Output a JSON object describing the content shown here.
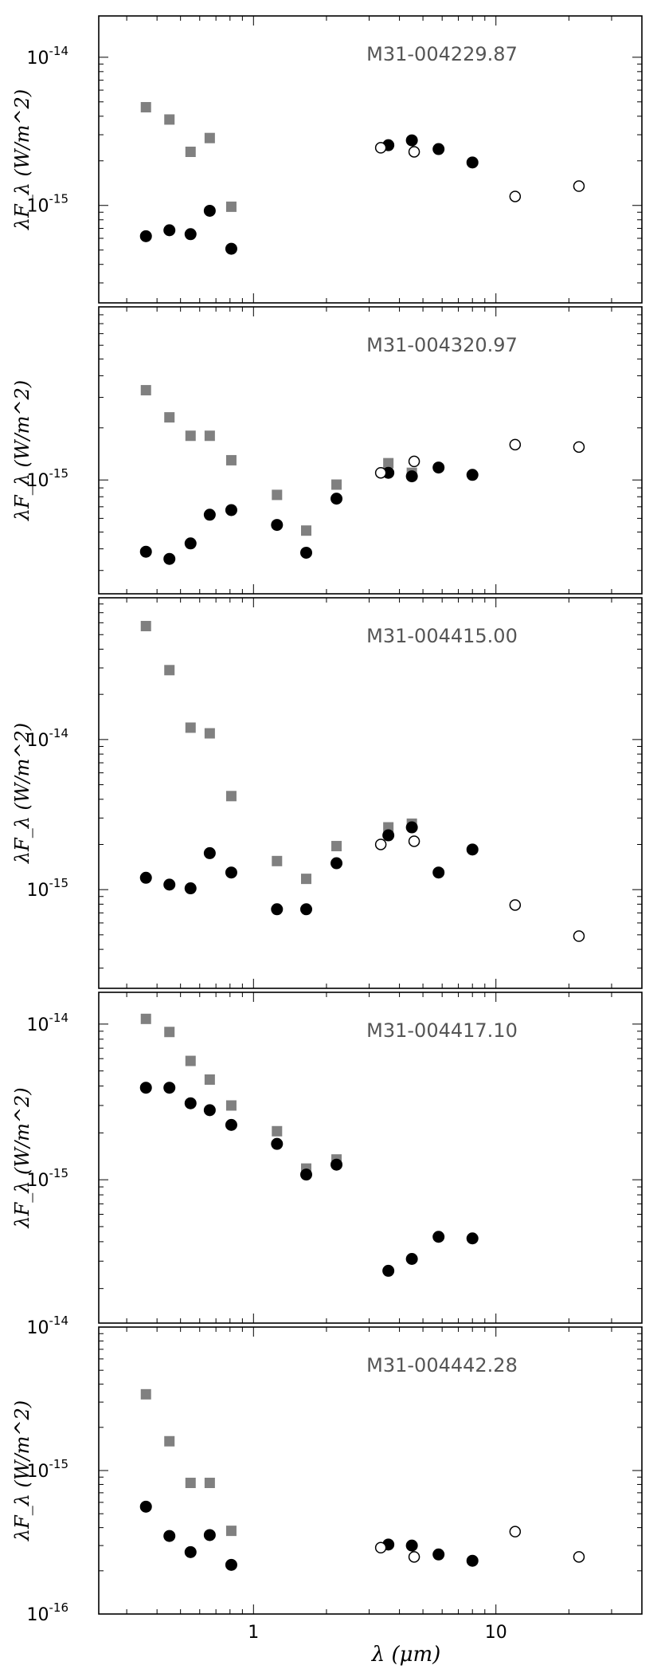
{
  "chart_data": {
    "type": "scatter",
    "xlabel": "λ (μm)",
    "xscale": "log",
    "xlim": [
      0.23,
      40
    ],
    "xticks": [
      {
        "value": 1,
        "label": "1"
      },
      {
        "value": 10,
        "label": "10"
      }
    ],
    "yscale": "log",
    "ylabel": "λF_λ (W/m^2)",
    "marker_legend": {
      "gray-square": "#808080",
      "black-circle": "#000000",
      "open-circle": "#000000"
    },
    "panels": [
      {
        "title": "M31-004229.87",
        "ylim": [
          2.2e-16,
          1.9e-14
        ],
        "yticks": [
          {
            "value": 1e-14,
            "base": "10",
            "exp": "-14"
          },
          {
            "value": 1e-15,
            "base": "10",
            "exp": "-15"
          }
        ],
        "series": [
          {
            "marker": "gray-square",
            "x": [
              0.36,
              0.45,
              0.55,
              0.66,
              0.81
            ],
            "y": [
              4.6e-15,
              3.8e-15,
              2.3e-15,
              2.85e-15,
              9.8e-16
            ]
          },
          {
            "marker": "black-circle",
            "x": [
              0.36,
              0.45,
              0.55,
              0.66,
              0.81,
              3.6,
              4.5,
              5.8,
              8.0
            ],
            "y": [
              6.2e-16,
              6.8e-16,
              6.4e-16,
              9.2e-16,
              5.1e-16,
              2.55e-15,
              2.75e-15,
              2.4e-15,
              1.95e-15
            ]
          },
          {
            "marker": "open-circle",
            "x": [
              3.35,
              4.6,
              12,
              22
            ],
            "y": [
              2.45e-15,
              2.3e-15,
              1.15e-15,
              1.35e-15
            ]
          }
        ]
      },
      {
        "title": "M31-004320.97",
        "ylim": [
          2.2e-16,
          1e-14
        ],
        "yticks": [
          {
            "value": 1e-15,
            "base": "10",
            "exp": "-15"
          }
        ],
        "series": [
          {
            "marker": "gray-square",
            "x": [
              0.36,
              0.45,
              0.55,
              0.66,
              0.81,
              1.25,
              1.65,
              2.2,
              3.6,
              4.5
            ],
            "y": [
              3.3e-15,
              2.3e-15,
              1.8e-15,
              1.8e-15,
              1.3e-15,
              8.2e-16,
              5.1e-16,
              9.4e-16,
              1.25e-15,
              1.1e-15
            ]
          },
          {
            "marker": "black-circle",
            "x": [
              0.36,
              0.45,
              0.55,
              0.66,
              0.81,
              1.25,
              1.65,
              2.2,
              3.6,
              4.5,
              5.8,
              8.0
            ],
            "y": [
              3.85e-16,
              3.5e-16,
              4.3e-16,
              6.3e-16,
              6.7e-16,
              5.5e-16,
              3.8e-16,
              7.8e-16,
              1.1e-15,
              1.05e-15,
              1.18e-15,
              1.07e-15
            ]
          },
          {
            "marker": "open-circle",
            "x": [
              3.35,
              4.6,
              12,
              22
            ],
            "y": [
              1.1e-15,
              1.28e-15,
              1.6e-15,
              1.55e-15
            ]
          }
        ]
      },
      {
        "title": "M31-004415.00",
        "ylim": [
          2.2e-16,
          8.8e-14
        ],
        "yticks": [
          {
            "value": 1e-14,
            "base": "10",
            "exp": "-14"
          },
          {
            "value": 1e-15,
            "base": "10",
            "exp": "-15"
          }
        ],
        "series": [
          {
            "marker": "gray-square",
            "x": [
              0.36,
              0.45,
              0.55,
              0.66,
              0.81,
              1.25,
              1.65,
              2.2,
              3.6,
              4.5
            ],
            "y": [
              5.7e-14,
              2.9e-14,
              1.2e-14,
              1.1e-14,
              4.2e-15,
              1.55e-15,
              1.18e-15,
              1.95e-15,
              2.6e-15,
              2.75e-15
            ]
          },
          {
            "marker": "black-circle",
            "x": [
              0.36,
              0.45,
              0.55,
              0.66,
              0.81,
              1.25,
              1.65,
              2.2,
              3.6,
              4.5,
              5.8,
              8.0
            ],
            "y": [
              1.2e-15,
              1.08e-15,
              1.02e-15,
              1.75e-15,
              1.3e-15,
              7.4e-16,
              7.4e-16,
              1.5e-15,
              2.3e-15,
              2.6e-15,
              1.3e-15,
              1.85e-15
            ]
          },
          {
            "marker": "open-circle",
            "x": [
              3.35,
              4.6,
              12,
              22
            ],
            "y": [
              2e-15,
              2.1e-15,
              7.9e-16,
              4.9e-16
            ]
          }
        ]
      },
      {
        "title": "M31-004417.10",
        "ylim": [
          1.2e-16,
          1.6e-14
        ],
        "yticks": [
          {
            "value": 1e-14,
            "base": "10",
            "exp": "-14"
          },
          {
            "value": 1e-15,
            "base": "10",
            "exp": "-15"
          }
        ],
        "series": [
          {
            "marker": "gray-square",
            "x": [
              0.36,
              0.45,
              0.55,
              0.66,
              0.81,
              1.25,
              1.65,
              2.2
            ],
            "y": [
              1.08e-14,
              8.9e-15,
              5.8e-15,
              4.4e-15,
              3e-15,
              2.05e-15,
              1.18e-15,
              1.35e-15
            ]
          },
          {
            "marker": "black-circle",
            "x": [
              0.36,
              0.45,
              0.55,
              0.66,
              0.81,
              1.25,
              1.65,
              2.2,
              3.6,
              4.5,
              5.8,
              8.0
            ],
            "y": [
              3.9e-15,
              3.9e-15,
              3.1e-15,
              2.8e-15,
              2.25e-15,
              1.7e-15,
              1.08e-15,
              1.25e-15,
              2.6e-16,
              3.1e-16,
              4.3e-16,
              4.2e-16
            ]
          }
        ]
      },
      {
        "title": "M31-004442.28",
        "ylim": [
          1e-16,
          1e-14
        ],
        "yticks": [
          {
            "value": 1e-14,
            "base": "10",
            "exp": "-14"
          },
          {
            "value": 1e-15,
            "base": "10",
            "exp": "-15"
          },
          {
            "value": 1e-16,
            "base": "10",
            "exp": "-16"
          }
        ],
        "series": [
          {
            "marker": "gray-square",
            "x": [
              0.36,
              0.45,
              0.55,
              0.66,
              0.81
            ],
            "y": [
              3.4e-15,
              1.6e-15,
              8.2e-16,
              8.2e-16,
              3.8e-16
            ]
          },
          {
            "marker": "black-circle",
            "x": [
              0.36,
              0.45,
              0.55,
              0.66,
              0.81,
              3.6,
              4.5,
              5.8,
              8.0
            ],
            "y": [
              5.6e-16,
              3.5e-16,
              2.7e-16,
              3.55e-16,
              2.2e-16,
              3.05e-16,
              3e-16,
              2.6e-16,
              2.35e-16
            ]
          },
          {
            "marker": "open-circle",
            "x": [
              3.35,
              4.6,
              12,
              22
            ],
            "y": [
              2.9e-16,
              2.5e-16,
              3.75e-16,
              2.5e-16
            ]
          }
        ]
      }
    ]
  }
}
